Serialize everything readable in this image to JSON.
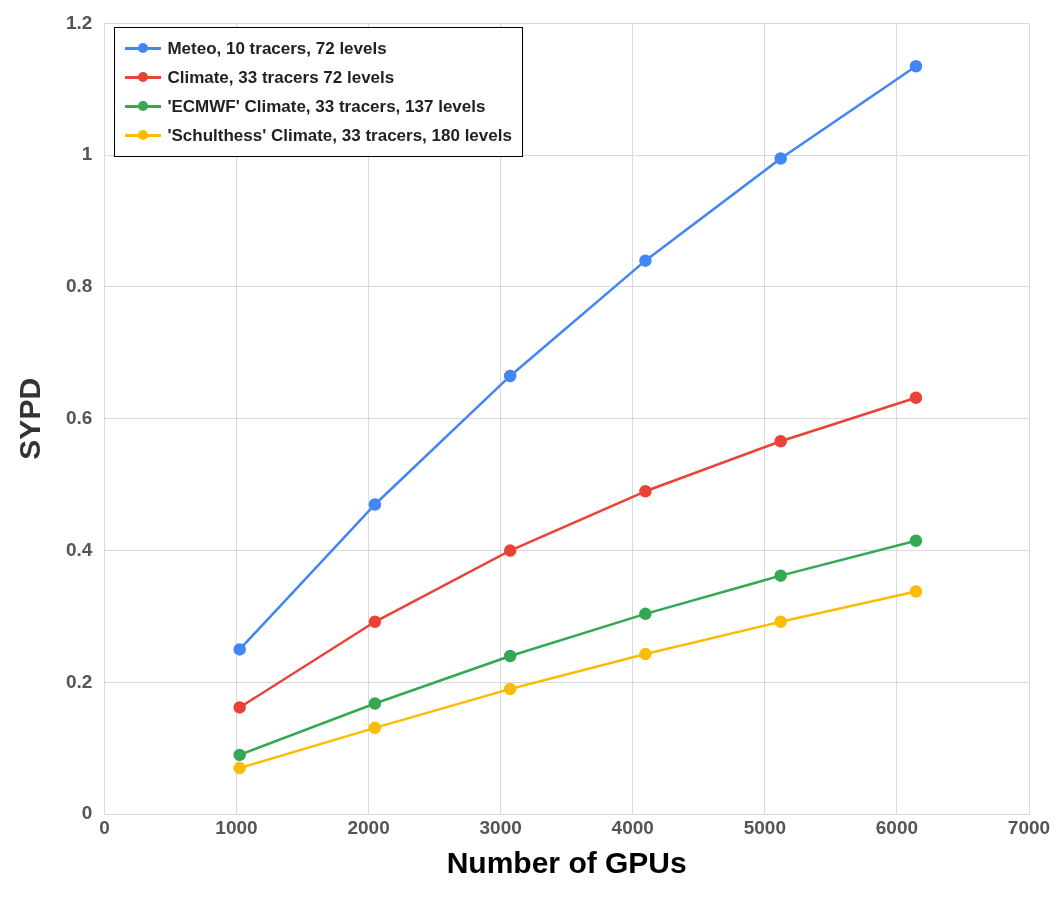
{
  "chart_data": {
    "type": "line",
    "xlabel": "Number of GPUs",
    "ylabel": "SYPD",
    "x": [
      1024,
      2048,
      3072,
      4096,
      5120,
      6144
    ],
    "series": [
      {
        "name": "Meteo, 10 tracers, 72 levels",
        "color": "#4285f4",
        "values": [
          0.25,
          0.47,
          0.665,
          0.84,
          0.995,
          1.135
        ]
      },
      {
        "name": "Climate, 33 tracers 72 levels",
        "color": "#ea4335",
        "values": [
          0.162,
          0.292,
          0.4,
          0.49,
          0.566,
          0.632
        ]
      },
      {
        "name": "'ECMWF' Climate, 33 tracers, 137 levels",
        "color": "#34a853",
        "values": [
          0.09,
          0.168,
          0.24,
          0.304,
          0.362,
          0.415
        ]
      },
      {
        "name": "'Schulthess' Climate, 33 tracers, 180 levels",
        "color": "#fbbc04",
        "values": [
          0.07,
          0.131,
          0.19,
          0.243,
          0.292,
          0.338
        ]
      }
    ],
    "xlim": [
      0,
      7000
    ],
    "xticks": [
      0,
      1000,
      2000,
      3000,
      4000,
      5000,
      6000,
      7000
    ],
    "ylim": [
      0,
      1.2
    ],
    "yticks": [
      0,
      0.2,
      0.4,
      0.6,
      0.8,
      1,
      1.2
    ],
    "grid": true,
    "legend": "top left",
    "marker": "circle",
    "line_style": "solid"
  }
}
